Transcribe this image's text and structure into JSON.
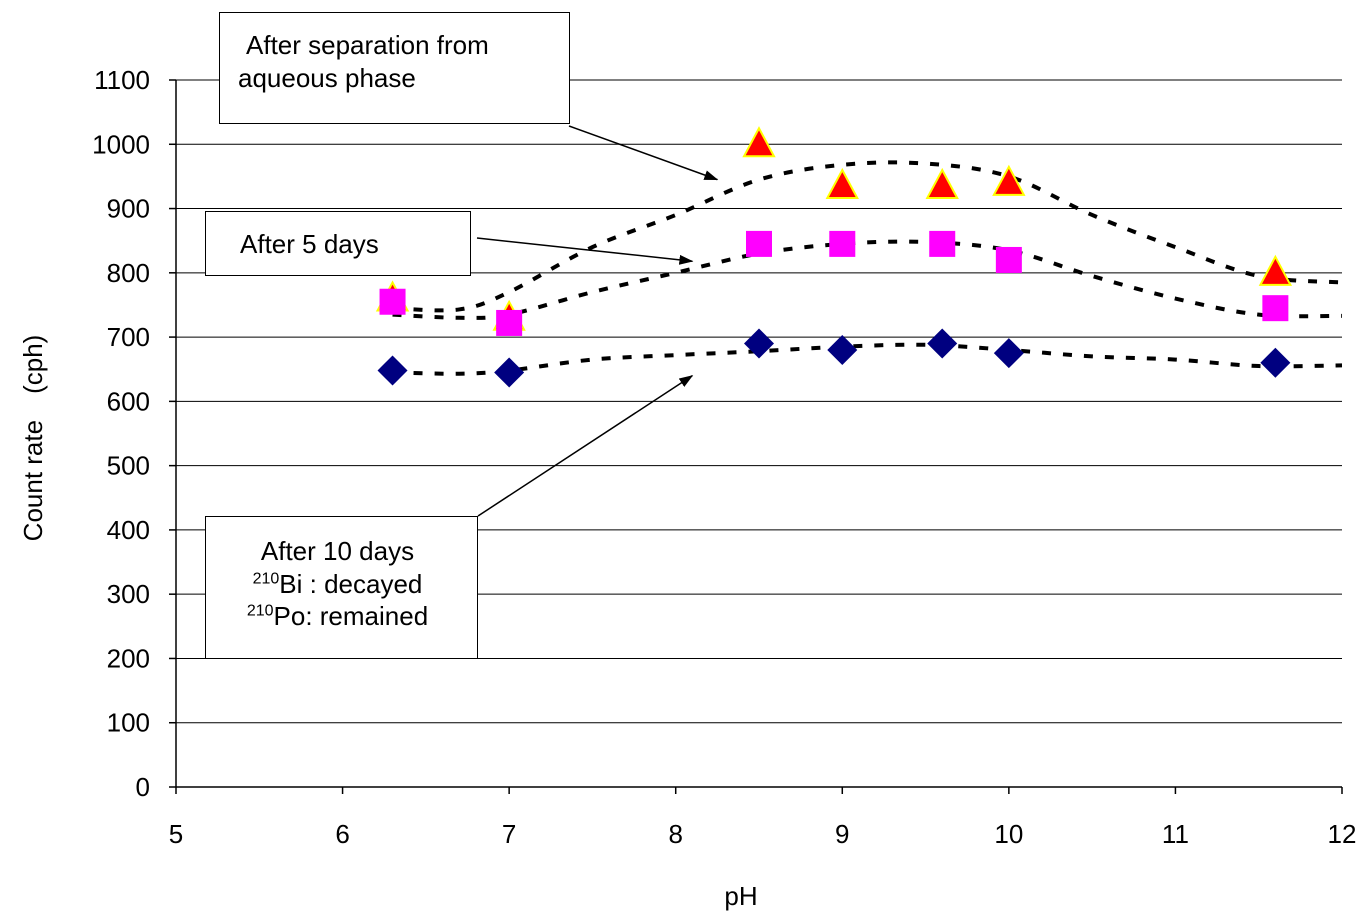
{
  "chart_data": {
    "type": "scatter",
    "title": "",
    "xlabel": "pH",
    "ylabel": "Count rate　(cph)",
    "xlim": [
      5,
      12
    ],
    "ylim": [
      0,
      1100
    ],
    "xticks": [
      "5",
      "6",
      "7",
      "8",
      "9",
      "10",
      "11",
      "12"
    ],
    "yticks": [
      "0",
      "100",
      "200",
      "300",
      "400",
      "500",
      "600",
      "700",
      "800",
      "900",
      "1000",
      "1100"
    ],
    "grid": "horizontal",
    "series": [
      {
        "marker": "triangle",
        "color": "#ff0000",
        "edge_color": "#ffff00",
        "x": [
          6.3,
          7.0,
          8.5,
          9.0,
          9.6,
          10.0,
          11.6
        ],
        "y": [
          760,
          730,
          1000,
          935,
          935,
          940,
          800
        ],
        "trend": {
          "x": [
            6.3,
            6.7,
            7.0,
            7.5,
            8.0,
            8.5,
            9.0,
            9.5,
            10.0,
            10.5,
            11.0,
            11.5,
            12.0
          ],
          "y": [
            745,
            743,
            770,
            840,
            890,
            945,
            968,
            970,
            950,
            890,
            840,
            795,
            785
          ]
        }
      },
      {
        "marker": "square",
        "color": "#ff00ff",
        "x": [
          6.3,
          7.0,
          8.5,
          9.0,
          9.6,
          10.0,
          11.6
        ],
        "y": [
          755,
          722,
          845,
          845,
          845,
          820,
          745
        ],
        "trend": {
          "x": [
            6.3,
            6.7,
            7.0,
            7.5,
            8.0,
            8.5,
            9.0,
            9.5,
            10.0,
            10.5,
            11.0,
            11.5,
            12.0
          ],
          "y": [
            735,
            730,
            735,
            770,
            800,
            830,
            845,
            848,
            835,
            795,
            760,
            735,
            733
          ]
        }
      },
      {
        "marker": "diamond",
        "color": "#000080",
        "x": [
          6.3,
          7.0,
          8.5,
          9.0,
          9.6,
          10.0,
          11.6
        ],
        "y": [
          648,
          645,
          690,
          680,
          690,
          675,
          660
        ],
        "trend": {
          "x": [
            6.3,
            6.7,
            7.0,
            7.5,
            8.0,
            8.5,
            9.0,
            9.5,
            10.0,
            10.5,
            11.0,
            11.5,
            12.0
          ],
          "y": [
            645,
            643,
            648,
            665,
            672,
            678,
            685,
            688,
            680,
            670,
            665,
            655,
            656
          ]
        }
      }
    ],
    "annotations": {
      "separation": {
        "line1": "After separation from",
        "line2": "aqueous phase"
      },
      "five_days": {
        "text": "After 5 days"
      },
      "ten_days": {
        "line1": "After 10 days",
        "bi_mass": "210",
        "bi_text": "Bi : decayed",
        "po_mass": "210",
        "po_text": "Po: remained"
      }
    }
  }
}
